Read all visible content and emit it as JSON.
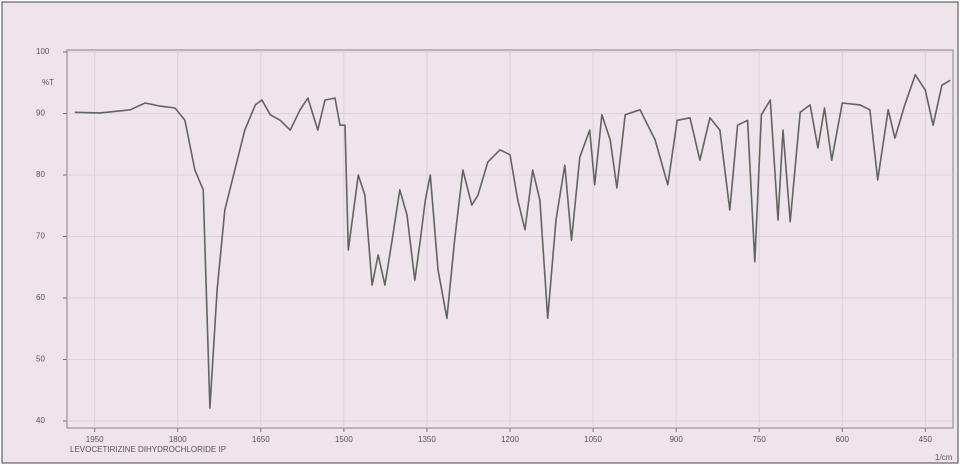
{
  "chart_data": {
    "type": "line",
    "y_label": "%T",
    "x_label": "1/cm",
    "caption": "LEVOCETIRIZINE DIHYDROCHLORIDE IP",
    "color": "#5f665c",
    "grid": true,
    "xlim": [
      2000,
      400
    ],
    "ylim": [
      40,
      100
    ],
    "xticks": [
      1950,
      1800,
      1650,
      1500,
      1350,
      1200,
      1050,
      900,
      750,
      600,
      450
    ],
    "yticks": [
      100,
      90,
      80,
      70,
      60,
      50,
      40
    ],
    "x": [
      1986,
      1940,
      1886,
      1859,
      1832,
      1805,
      1787,
      1769,
      1754,
      1742,
      1729,
      1715,
      1697,
      1679,
      1660,
      1648,
      1633,
      1615,
      1597,
      1579,
      1565,
      1547,
      1534,
      1516,
      1507,
      1498,
      1492,
      1474,
      1462,
      1449,
      1438,
      1426,
      1413,
      1399,
      1386,
      1372,
      1362,
      1353,
      1344,
      1330,
      1314,
      1300,
      1285,
      1269,
      1258,
      1240,
      1218,
      1200,
      1186,
      1173,
      1159,
      1146,
      1132,
      1117,
      1101,
      1089,
      1074,
      1056,
      1047,
      1034,
      1019,
      1007,
      992,
      965,
      938,
      915,
      898,
      875,
      857,
      839,
      821,
      803,
      789,
      771,
      758,
      746,
      730,
      716,
      707,
      694,
      676,
      658,
      644,
      632,
      619,
      600,
      568,
      550,
      536,
      517,
      505,
      487,
      468,
      450,
      436,
      420,
      405
    ],
    "values": [
      90.2,
      90.1,
      90.6,
      91.7,
      91.2,
      90.9,
      88.9,
      80.8,
      77.6,
      42.1,
      61.3,
      74.3,
      80.8,
      87.3,
      91.4,
      92.2,
      89.8,
      88.9,
      87.3,
      90.6,
      92.5,
      87.3,
      92.2,
      92.5,
      88.1,
      88.1,
      67.8,
      80.0,
      76.7,
      62.1,
      67.0,
      62.1,
      69.4,
      77.6,
      73.5,
      62.9,
      69.4,
      75.9,
      80.0,
      64.6,
      56.7,
      69.4,
      80.8,
      75.1,
      76.7,
      82.1,
      84.1,
      83.3,
      75.9,
      71.1,
      80.8,
      75.9,
      56.7,
      72.7,
      81.6,
      69.4,
      82.9,
      87.3,
      78.4,
      89.8,
      85.7,
      77.9,
      89.8,
      90.6,
      85.7,
      78.4,
      88.9,
      89.3,
      82.4,
      89.3,
      87.3,
      74.3,
      88.1,
      88.9,
      65.9,
      89.8,
      92.2,
      72.7,
      87.3,
      72.4,
      90.2,
      91.4,
      84.4,
      90.9,
      82.4,
      91.7,
      91.4,
      90.6,
      79.2,
      90.6,
      86.0,
      91.4,
      96.3,
      93.8,
      88.1,
      94.6,
      95.4
    ]
  }
}
